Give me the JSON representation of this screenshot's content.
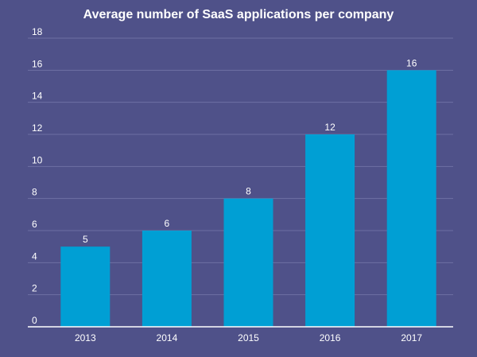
{
  "chart_data": {
    "type": "bar",
    "title": "Average number of SaaS applications per company",
    "categories": [
      "2013",
      "2014",
      "2015",
      "2016",
      "2017"
    ],
    "values": [
      5,
      6,
      8,
      12,
      16
    ],
    "value_labels": [
      "5",
      "6",
      "8",
      "12",
      "16"
    ],
    "xlabel": "",
    "ylabel": "",
    "ylim": [
      0,
      18
    ],
    "yticks": [
      0,
      2,
      4,
      6,
      8,
      10,
      12,
      14,
      16,
      18
    ],
    "ytick_labels": [
      "0",
      "2",
      "4",
      "6",
      "8",
      "10",
      "12",
      "14",
      "16",
      "18"
    ],
    "grid": true,
    "legend": "none"
  },
  "colors": {
    "background": "#4f5189",
    "bar": "#009fd4",
    "grid": "#6e70a4",
    "axis": "#ffffff",
    "text": "#ffffff"
  }
}
